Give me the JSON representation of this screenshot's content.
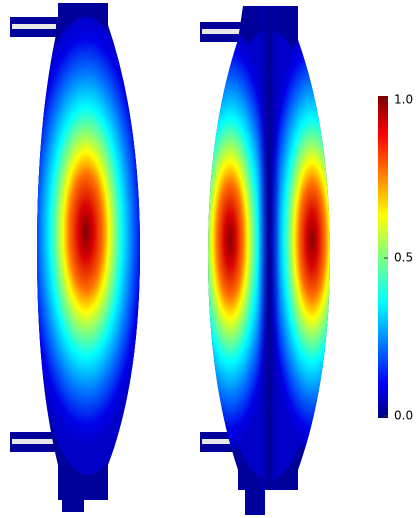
{
  "colorbar": {
    "range": [
      0,
      1
    ],
    "ticks": [
      {
        "value": 0,
        "label": "0.0"
      },
      {
        "value": 0.5,
        "label": "0.5"
      },
      {
        "value": 1,
        "label": "1.0"
      }
    ]
  }
}
